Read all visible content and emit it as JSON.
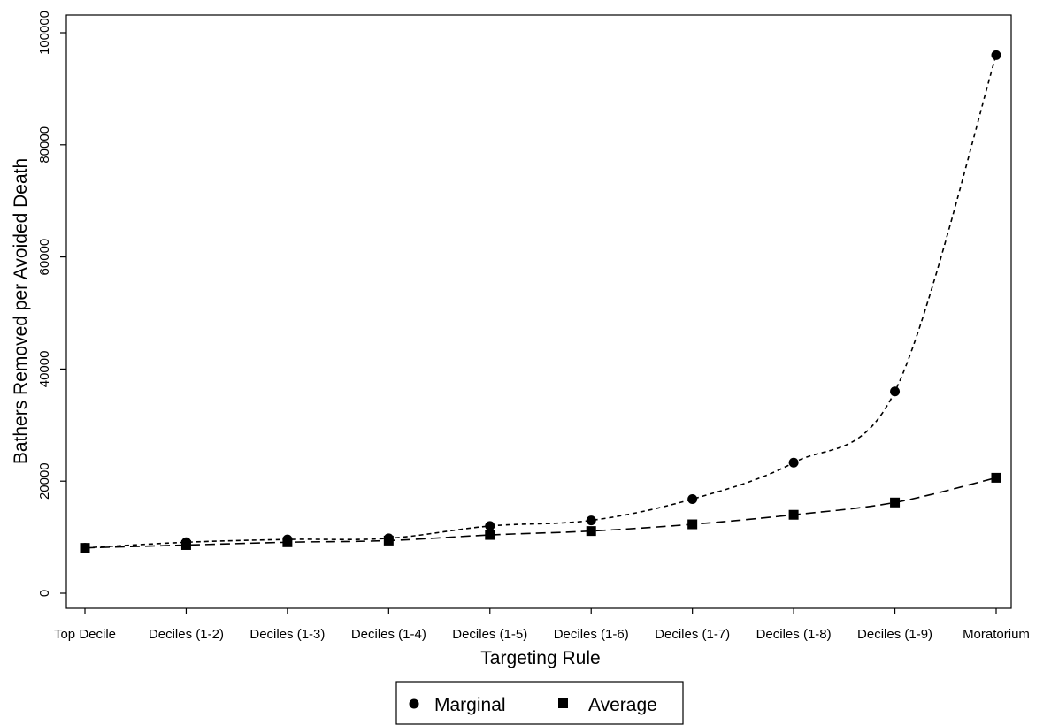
{
  "chart_data": {
    "type": "line",
    "categories": [
      "Top Decile",
      "Deciles (1-2)",
      "Deciles (1-3)",
      "Deciles (1-4)",
      "Deciles (1-5)",
      "Deciles (1-6)",
      "Deciles (1-7)",
      "Deciles (1-8)",
      "Deciles (1-9)",
      "Moratorium"
    ],
    "series": [
      {
        "name": "Marginal",
        "marker": "circle",
        "line_style": "dotted",
        "values": [
          8100,
          9100,
          9600,
          9800,
          12000,
          13000,
          16800,
          23300,
          36000,
          96000
        ]
      },
      {
        "name": "Average",
        "marker": "square",
        "line_style": "dashed",
        "values": [
          8100,
          8600,
          9100,
          9400,
          10400,
          11100,
          12300,
          14000,
          16200,
          20600
        ]
      }
    ],
    "title": "",
    "xlabel": "Targeting Rule",
    "ylabel": "Bathers Removed per Avoided Death",
    "ylim": [
      0,
      100000
    ],
    "yticks": [
      0,
      20000,
      40000,
      60000,
      80000,
      100000
    ],
    "grid": false,
    "legend_position": "bottom"
  }
}
